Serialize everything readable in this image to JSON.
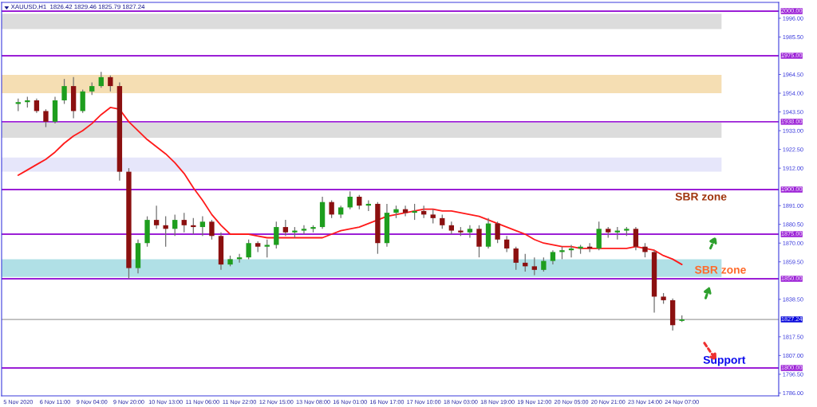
{
  "chart_data": {
    "type": "candlestick",
    "title": "XAUUSD,H1  1826.42 1829.46 1825.79 1827.24",
    "categories": [
      "5 Nov 2020",
      null,
      null,
      null,
      "6 Nov 11:00",
      null,
      null,
      null,
      "9 Nov 04:00",
      null,
      null,
      null,
      "9 Nov 20:00",
      null,
      null,
      null,
      "10 Nov 13:00",
      null,
      null,
      null,
      "11 Nov 06:00",
      null,
      null,
      null,
      "11 Nov 22:00",
      null,
      null,
      null,
      "12 Nov 15:00",
      null,
      null,
      null,
      "13 Nov 08:00",
      null,
      null,
      null,
      "16 Nov 01:00",
      null,
      null,
      null,
      "16 Nov 17:00",
      null,
      null,
      null,
      "17 Nov 10:00",
      null,
      null,
      null,
      "18 Nov 03:00",
      null,
      null,
      null,
      "18 Nov 19:00",
      null,
      null,
      null,
      "19 Nov 12:00",
      null,
      null,
      null,
      "20 Nov 05:00",
      null,
      null,
      null,
      "20 Nov 21:00",
      null,
      null,
      null,
      "23 Nov 14:00",
      null,
      null,
      null,
      "24 Nov 07:00"
    ],
    "ohlc": [
      [
        1948,
        1951,
        1944,
        1949
      ],
      [
        1949,
        1952,
        1946,
        1950
      ],
      [
        1950,
        1951,
        1943,
        1944
      ],
      [
        1944,
        1945,
        1935,
        1938
      ],
      [
        1938,
        1952,
        1937,
        1950
      ],
      [
        1950,
        1962,
        1948,
        1958
      ],
      [
        1958,
        1963,
        1940,
        1944
      ],
      [
        1944,
        1956,
        1943,
        1955
      ],
      [
        1955,
        1960,
        1953,
        1958
      ],
      [
        1958,
        1966,
        1957,
        1963
      ],
      [
        1963,
        1964,
        1955,
        1958
      ],
      [
        1958,
        1960,
        1905,
        1910
      ],
      [
        1910,
        1912,
        1850,
        1856
      ],
      [
        1856,
        1872,
        1853,
        1870
      ],
      [
        1870,
        1885,
        1868,
        1883
      ],
      [
        1883,
        1891,
        1878,
        1880
      ],
      [
        1880,
        1885,
        1868,
        1878
      ],
      [
        1878,
        1886,
        1874,
        1883
      ],
      [
        1883,
        1887,
        1876,
        1880
      ],
      [
        1880,
        1884,
        1875,
        1879
      ],
      [
        1879,
        1885,
        1874,
        1882
      ],
      [
        1882,
        1883,
        1872,
        1874
      ],
      [
        1874,
        1876,
        1855,
        1858
      ],
      [
        1858,
        1863,
        1857,
        1861
      ],
      [
        1861,
        1864,
        1859,
        1862
      ],
      [
        1862,
        1872,
        1861,
        1870
      ],
      [
        1870,
        1871,
        1865,
        1868
      ],
      [
        1868,
        1872,
        1862,
        1869
      ],
      [
        1869,
        1882,
        1867,
        1879
      ],
      [
        1879,
        1883,
        1874,
        1876
      ],
      [
        1876,
        1879,
        1873,
        1877
      ],
      [
        1877,
        1880,
        1875,
        1878
      ],
      [
        1878,
        1880,
        1876,
        1879
      ],
      [
        1879,
        1896,
        1878,
        1893
      ],
      [
        1893,
        1894,
        1884,
        1886
      ],
      [
        1886,
        1891,
        1884,
        1890
      ],
      [
        1890,
        1899,
        1889,
        1896
      ],
      [
        1896,
        1897,
        1889,
        1891
      ],
      [
        1891,
        1894,
        1888,
        1892
      ],
      [
        1892,
        1893,
        1864,
        1870
      ],
      [
        1870,
        1892,
        1868,
        1887
      ],
      [
        1887,
        1891,
        1884,
        1889
      ],
      [
        1889,
        1891,
        1885,
        1887
      ],
      [
        1887,
        1892,
        1883,
        1888
      ],
      [
        1888,
        1891,
        1884,
        1886
      ],
      [
        1886,
        1889,
        1881,
        1884
      ],
      [
        1884,
        1886,
        1878,
        1880
      ],
      [
        1880,
        1882,
        1875,
        1877
      ],
      [
        1877,
        1879,
        1874,
        1876
      ],
      [
        1876,
        1880,
        1873,
        1878
      ],
      [
        1878,
        1880,
        1862,
        1868
      ],
      [
        1868,
        1884,
        1867,
        1881
      ],
      [
        1881,
        1882,
        1870,
        1872
      ],
      [
        1872,
        1874,
        1865,
        1867
      ],
      [
        1867,
        1868,
        1855,
        1859
      ],
      [
        1859,
        1864,
        1854,
        1857
      ],
      [
        1857,
        1862,
        1852,
        1855
      ],
      [
        1855,
        1862,
        1854,
        1860
      ],
      [
        1860,
        1866,
        1858,
        1865
      ],
      [
        1865,
        1868,
        1861,
        1866
      ],
      [
        1866,
        1869,
        1862,
        1867
      ],
      [
        1867,
        1869,
        1864,
        1868
      ],
      [
        1868,
        1870,
        1865,
        1867
      ],
      [
        1867,
        1882,
        1866,
        1878
      ],
      [
        1878,
        1879,
        1873,
        1876
      ],
      [
        1876,
        1879,
        1872,
        1877
      ],
      [
        1877,
        1879,
        1874,
        1878
      ],
      [
        1878,
        1879,
        1866,
        1868
      ],
      [
        1868,
        1870,
        1862,
        1865
      ],
      [
        1865,
        1866,
        1831,
        1840
      ],
      [
        1840,
        1842,
        1836,
        1838
      ],
      [
        1838,
        1839,
        1821,
        1824
      ],
      [
        1826.42,
        1829.46,
        1825.79,
        1827.24
      ]
    ],
    "colors": [
      "#1e9e1e",
      "#1e9e1e",
      "#8b1010",
      "#8b1010",
      "#1e9e1e",
      "#1e9e1e",
      "#8b1010",
      "#1e9e1e",
      "#1e9e1e",
      "#1e9e1e",
      "#8b1010",
      "#8b1010",
      "#8b1010",
      "#1e9e1e",
      "#1e9e1e",
      "#8b1010",
      "#8b1010",
      "#1e9e1e",
      "#8b1010",
      "#8b1010",
      "#1e9e1e",
      "#8b1010",
      "#8b1010",
      "#1e9e1e",
      "#1e9e1e",
      "#1e9e1e",
      "#8b1010",
      "#1e9e1e",
      "#1e9e1e",
      "#8b1010",
      "#1e9e1e",
      "#1e9e1e",
      "#1e9e1e",
      "#1e9e1e",
      "#8b1010",
      "#1e9e1e",
      "#1e9e1e",
      "#8b1010",
      "#1e9e1e",
      "#8b1010",
      "#1e9e1e",
      "#1e9e1e",
      "#8b1010",
      "#1e9e1e",
      "#8b1010",
      "#8b1010",
      "#8b1010",
      "#8b1010",
      "#8b1010",
      "#1e9e1e",
      "#8b1010",
      "#1e9e1e",
      "#8b1010",
      "#8b1010",
      "#8b1010",
      "#8b1010",
      "#8b1010",
      "#1e9e1e",
      "#1e9e1e",
      "#1e9e1e",
      "#1e9e1e",
      "#1e9e1e",
      "#8b1010",
      "#1e9e1e",
      "#8b1010",
      "#1e9e1e",
      "#1e9e1e",
      "#8b1010",
      "#8b1010",
      "#8b1010",
      "#8b1010",
      "#8b1010",
      "#1e9e1e"
    ],
    "series": [
      {
        "type": "line",
        "color": "#ff1a1a",
        "values": [
          1908,
          1911,
          1914,
          1917,
          1921,
          1926,
          1930,
          1933,
          1937,
          1942,
          1946,
          1945,
          1938,
          1933,
          1928,
          1924,
          1920,
          1915,
          1909,
          1901,
          1894,
          1886,
          1880,
          1875,
          1875,
          1875,
          1874,
          1873,
          1873,
          1873,
          1873,
          1873,
          1873,
          1873,
          1875,
          1877,
          1878,
          1879,
          1881,
          1883,
          1885,
          1886,
          1887,
          1888,
          1889,
          1889,
          1888,
          1888,
          1887,
          1886,
          1885,
          1883,
          1881,
          1879,
          1877,
          1875,
          1872,
          1870,
          1869,
          1868,
          1868,
          1867,
          1867,
          1867,
          1867,
          1867,
          1867,
          1868,
          1867,
          1866,
          1863,
          1861,
          1858
        ]
      }
    ],
    "ylim": [
      1784.4,
      2004.9
    ],
    "yticks": [
      {
        "value": 1996,
        "label": "1996.00"
      },
      {
        "value": 1985.5,
        "label": "1985.50"
      },
      {
        "value": 1964.5,
        "label": "1964.50"
      },
      {
        "value": 1954,
        "label": "1954.00"
      },
      {
        "value": 1943.5,
        "label": "1943.50"
      },
      {
        "value": 1933,
        "label": "1933.00"
      },
      {
        "value": 1922.5,
        "label": "1922.50"
      },
      {
        "value": 1912,
        "label": "1912.00"
      },
      {
        "value": 1891,
        "label": "1891.00"
      },
      {
        "value": 1880.5,
        "label": "1880.50"
      },
      {
        "value": 1870,
        "label": "1870.00"
      },
      {
        "value": 1859.5,
        "label": "1859.50"
      },
      {
        "value": 1838.5,
        "label": "1838.50"
      },
      {
        "value": 1817.5,
        "label": "1817.50"
      },
      {
        "value": 1807,
        "label": "1807.00"
      },
      {
        "value": 1796.5,
        "label": "1796.50"
      },
      {
        "value": 1786,
        "label": "1786.00"
      }
    ],
    "ref_lines": [
      {
        "axis": "y",
        "value": 2000,
        "label": "2000.00",
        "color": "#9b1fd6"
      },
      {
        "axis": "y",
        "value": 1975,
        "label": "1975.00",
        "color": "#9b1fd6"
      },
      {
        "axis": "y",
        "value": 1938,
        "label": "1938.00",
        "color": "#9b1fd6"
      },
      {
        "axis": "y",
        "value": 1900,
        "label": "1900.00",
        "color": "#9b1fd6"
      },
      {
        "axis": "y",
        "value": 1875,
        "label": "1875.00",
        "color": "#9b1fd6"
      },
      {
        "axis": "y",
        "value": 1850,
        "label": "1850.00",
        "color": "#9b1fd6"
      },
      {
        "axis": "y",
        "value": 1800,
        "label": "1800.00",
        "color": "#9b1fd6"
      },
      {
        "axis": "y",
        "value": 1827.24,
        "label": "1827.24",
        "color": "#a0a0a0"
      }
    ],
    "bands": [
      {
        "axis": "y",
        "from": 1990,
        "to": 1998.5,
        "color": "#dcdcdc"
      },
      {
        "axis": "y",
        "from": 1954,
        "to": 1964.3,
        "color": "#f5deb3"
      },
      {
        "axis": "y",
        "from": 1929,
        "to": 1937.5,
        "color": "#dcdcdc"
      },
      {
        "axis": "y",
        "from": 1910,
        "to": 1918,
        "color": "#e6e6fa"
      },
      {
        "axis": "y",
        "from": 1851,
        "to": 1861,
        "color": "#b0e0e6"
      }
    ],
    "annotations": [
      "SBR zone",
      "SBR zone",
      "Support"
    ],
    "grid": false
  }
}
